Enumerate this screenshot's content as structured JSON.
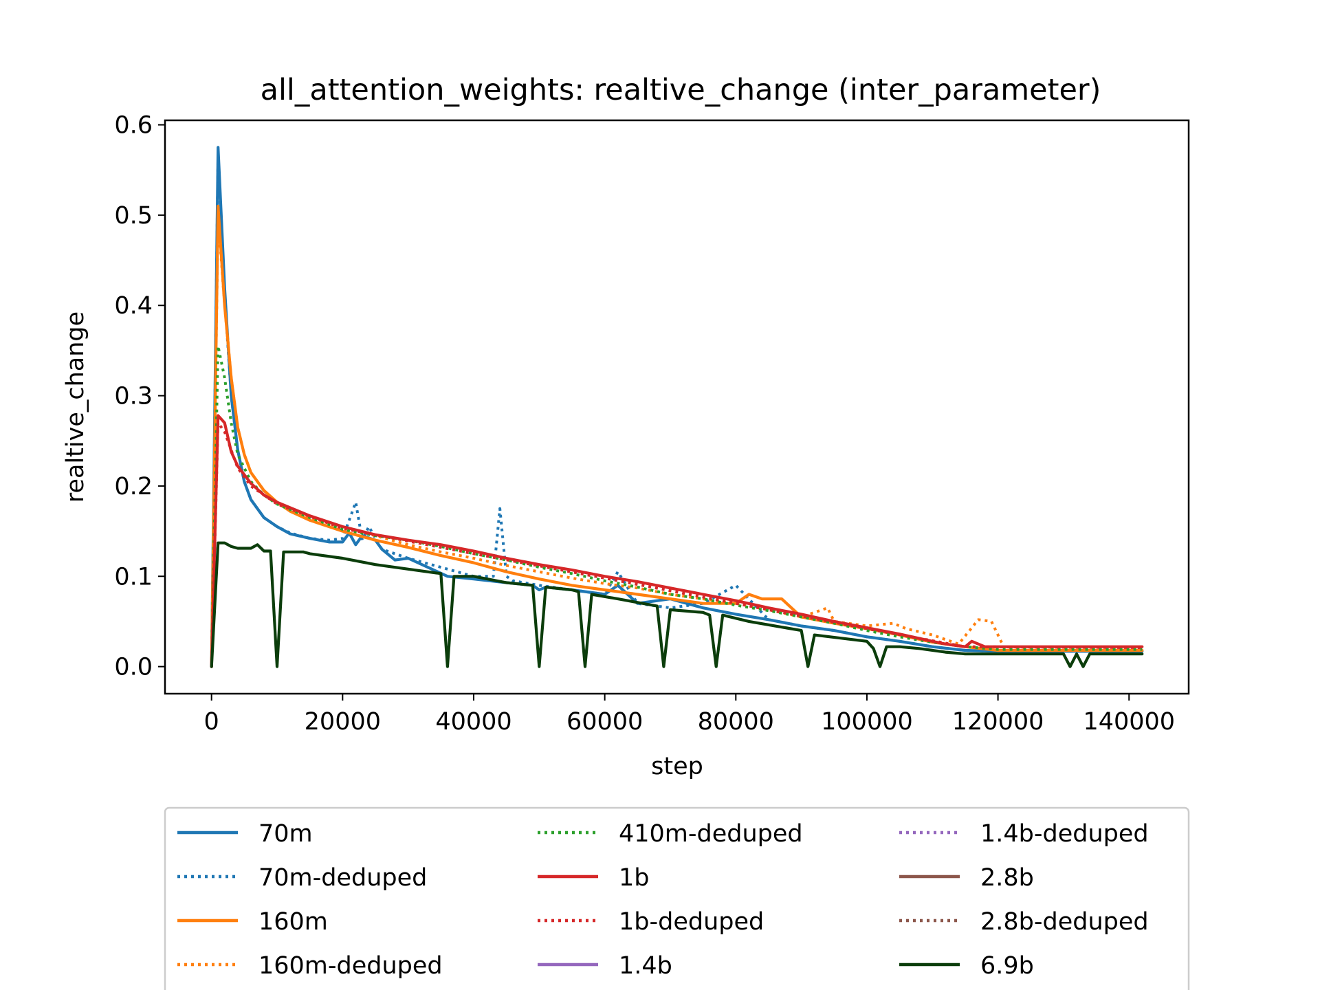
{
  "chart_data": {
    "type": "line",
    "title": "all_attention_weights: realtive_change (inter_parameter)",
    "xlabel": "step",
    "ylabel": "realtive_change",
    "xlim": [
      -7100,
      149100
    ],
    "ylim": [
      -0.03,
      0.605
    ],
    "xticks": [
      0,
      20000,
      40000,
      60000,
      80000,
      100000,
      120000,
      140000
    ],
    "xtick_labels": [
      "0",
      "20000",
      "40000",
      "60000",
      "80000",
      "100000",
      "120000",
      "140000"
    ],
    "yticks": [
      0.0,
      0.1,
      0.2,
      0.3,
      0.4,
      0.5,
      0.6
    ],
    "ytick_labels": [
      "0.0",
      "0.1",
      "0.2",
      "0.3",
      "0.4",
      "0.5",
      "0.6"
    ],
    "grid": false,
    "legend_position": "below",
    "series": [
      {
        "name": "70m",
        "color": "#1f77b4",
        "style": "solid",
        "x": [
          0,
          1000,
          2000,
          3000,
          4000,
          5000,
          6000,
          8000,
          10000,
          12000,
          15000,
          18000,
          20000,
          21000,
          22000,
          23000,
          25000,
          26000,
          28000,
          30000,
          33000,
          36000,
          40000,
          45000,
          49000,
          50000,
          51000,
          55000,
          60000,
          62000,
          65000,
          70000,
          75000,
          80000,
          85000,
          90000,
          95000,
          100000,
          105000,
          110000,
          115000,
          120000,
          130000,
          142000
        ],
        "y": [
          0.0,
          0.575,
          0.42,
          0.3,
          0.24,
          0.205,
          0.185,
          0.165,
          0.155,
          0.147,
          0.142,
          0.138,
          0.138,
          0.148,
          0.135,
          0.145,
          0.14,
          0.13,
          0.118,
          0.12,
          0.11,
          0.1,
          0.097,
          0.093,
          0.09,
          0.085,
          0.088,
          0.085,
          0.08,
          0.09,
          0.07,
          0.075,
          0.065,
          0.058,
          0.052,
          0.045,
          0.04,
          0.033,
          0.028,
          0.022,
          0.018,
          0.017,
          0.017,
          0.017
        ]
      },
      {
        "name": "70m-deduped",
        "color": "#1f77b4",
        "style": "dotted",
        "x": [
          0,
          1000,
          2000,
          3000,
          4000,
          5000,
          6000,
          8000,
          10000,
          12000,
          15000,
          18000,
          20000,
          22000,
          23000,
          24000,
          26000,
          30000,
          35000,
          40000,
          43000,
          44000,
          45000,
          46000,
          50000,
          55000,
          60000,
          62000,
          65000,
          70000,
          75000,
          80000,
          85000,
          90000,
          95000,
          100000,
          105000,
          110000,
          115000,
          120000,
          130000,
          142000
        ],
        "y": [
          0.0,
          0.57,
          0.41,
          0.3,
          0.24,
          0.205,
          0.185,
          0.165,
          0.155,
          0.148,
          0.142,
          0.14,
          0.142,
          0.182,
          0.14,
          0.155,
          0.13,
          0.12,
          0.11,
          0.1,
          0.1,
          0.175,
          0.1,
          0.095,
          0.09,
          0.085,
          0.08,
          0.105,
          0.07,
          0.065,
          0.07,
          0.09,
          0.052,
          0.045,
          0.04,
          0.033,
          0.028,
          0.022,
          0.018,
          0.017,
          0.017,
          0.017
        ]
      },
      {
        "name": "160m",
        "color": "#ff7f0e",
        "style": "solid",
        "x": [
          0,
          1000,
          2000,
          3000,
          4000,
          5000,
          6000,
          8000,
          10000,
          12000,
          15000,
          20000,
          25000,
          30000,
          35000,
          40000,
          45000,
          50000,
          55000,
          60000,
          65000,
          70000,
          75000,
          80000,
          82000,
          84000,
          87000,
          90000,
          95000,
          100000,
          105000,
          110000,
          115000,
          120000,
          130000,
          142000
        ],
        "y": [
          0.0,
          0.51,
          0.4,
          0.32,
          0.265,
          0.235,
          0.215,
          0.195,
          0.182,
          0.172,
          0.162,
          0.15,
          0.14,
          0.132,
          0.123,
          0.115,
          0.105,
          0.097,
          0.09,
          0.085,
          0.08,
          0.075,
          0.07,
          0.07,
          0.08,
          0.075,
          0.075,
          0.055,
          0.048,
          0.042,
          0.035,
          0.027,
          0.022,
          0.018,
          0.018,
          0.018
        ]
      },
      {
        "name": "160m-deduped",
        "color": "#ff7f0e",
        "style": "dotted",
        "x": [
          0,
          1000,
          2000,
          3000,
          4000,
          5000,
          6000,
          8000,
          10000,
          15000,
          20000,
          25000,
          30000,
          35000,
          40000,
          45000,
          50000,
          55000,
          60000,
          65000,
          70000,
          75000,
          80000,
          85000,
          90000,
          94000,
          95000,
          100000,
          104000,
          106000,
          110000,
          114000,
          117000,
          119000,
          121000,
          123000,
          130000,
          142000
        ],
        "y": [
          0.0,
          0.5,
          0.4,
          0.32,
          0.265,
          0.235,
          0.215,
          0.195,
          0.182,
          0.165,
          0.155,
          0.145,
          0.135,
          0.127,
          0.12,
          0.112,
          0.105,
          0.098,
          0.092,
          0.087,
          0.08,
          0.075,
          0.07,
          0.063,
          0.055,
          0.065,
          0.05,
          0.045,
          0.048,
          0.042,
          0.035,
          0.025,
          0.052,
          0.05,
          0.02,
          0.019,
          0.019,
          0.019
        ]
      },
      {
        "name": "410m-deduped",
        "color": "#2ca02c",
        "style": "dotted",
        "x": [
          0,
          1000,
          2000,
          3000,
          4000,
          6000,
          8000,
          10000,
          15000,
          20000,
          25000,
          30000,
          35000,
          40000,
          45000,
          50000,
          55000,
          60000,
          65000,
          70000,
          75000,
          80000,
          85000,
          90000,
          95000,
          100000,
          105000,
          110000,
          115000,
          120000,
          130000,
          142000
        ],
        "y": [
          0.0,
          0.355,
          0.32,
          0.27,
          0.235,
          0.205,
          0.19,
          0.18,
          0.165,
          0.152,
          0.145,
          0.14,
          0.133,
          0.125,
          0.118,
          0.11,
          0.103,
          0.095,
          0.088,
          0.08,
          0.075,
          0.068,
          0.062,
          0.055,
          0.048,
          0.04,
          0.033,
          0.027,
          0.022,
          0.019,
          0.019,
          0.019
        ]
      },
      {
        "name": "1b",
        "color": "#d62728",
        "style": "solid",
        "x": [
          0,
          1000,
          2000,
          3000,
          4000,
          6000,
          8000,
          10000,
          15000,
          20000,
          25000,
          30000,
          35000,
          40000,
          45000,
          50000,
          55000,
          60000,
          65000,
          70000,
          75000,
          80000,
          85000,
          90000,
          95000,
          100000,
          105000,
          110000,
          112000,
          115000,
          116000,
          118000,
          120000,
          130000,
          142000
        ],
        "y": [
          0.0,
          0.278,
          0.27,
          0.238,
          0.222,
          0.203,
          0.19,
          0.182,
          0.167,
          0.155,
          0.146,
          0.14,
          0.135,
          0.128,
          0.12,
          0.113,
          0.107,
          0.1,
          0.094,
          0.087,
          0.08,
          0.073,
          0.065,
          0.058,
          0.05,
          0.043,
          0.036,
          0.028,
          0.025,
          0.022,
          0.028,
          0.022,
          0.022,
          0.022,
          0.022
        ]
      },
      {
        "name": "1b-deduped",
        "color": "#d62728",
        "style": "dotted",
        "x": [
          0,
          1000,
          2000,
          4000,
          6000,
          10000,
          20000,
          40000,
          60000,
          80000,
          100000,
          115000,
          142000
        ],
        "y": [
          0.0,
          0.27,
          0.26,
          0.22,
          0.2,
          0.18,
          0.153,
          0.125,
          0.098,
          0.07,
          0.042,
          0.022,
          0.021
        ]
      },
      {
        "name": "1.4b",
        "color": "#9467bd",
        "style": "solid",
        "x": [],
        "y": []
      },
      {
        "name": "1.4b-deduped",
        "color": "#9467bd",
        "style": "dotted",
        "x": [],
        "y": []
      },
      {
        "name": "2.8b",
        "color": "#8c564b",
        "style": "solid",
        "x": [],
        "y": []
      },
      {
        "name": "2.8b-deduped",
        "color": "#8c564b",
        "style": "dotted",
        "x": [],
        "y": []
      },
      {
        "name": "6.9b",
        "color": "#0b3d0b",
        "style": "solid",
        "x": [
          0,
          1000,
          2000,
          3000,
          4000,
          5000,
          6000,
          7000,
          8000,
          9000,
          10000,
          11000,
          12000,
          13000,
          14000,
          15000,
          20000,
          25000,
          30000,
          35000,
          36000,
          37000,
          40000,
          45000,
          49000,
          50000,
          51000,
          55000,
          56000,
          57000,
          58000,
          62000,
          68000,
          69000,
          70000,
          75000,
          76000,
          77000,
          78000,
          82000,
          90000,
          91000,
          92000,
          100000,
          101000,
          102000,
          103000,
          105000,
          108000,
          112000,
          115000,
          120000,
          130000,
          131000,
          132000,
          133000,
          134000,
          142000
        ],
        "y": [
          0.0,
          0.137,
          0.137,
          0.133,
          0.131,
          0.131,
          0.131,
          0.135,
          0.128,
          0.128,
          0.0,
          0.127,
          0.127,
          0.127,
          0.127,
          0.125,
          0.12,
          0.113,
          0.108,
          0.103,
          0.0,
          0.1,
          0.1,
          0.093,
          0.09,
          0.0,
          0.088,
          0.085,
          0.083,
          0.0,
          0.08,
          0.075,
          0.067,
          0.0,
          0.063,
          0.06,
          0.057,
          0.0,
          0.057,
          0.05,
          0.04,
          0.0,
          0.035,
          0.028,
          0.02,
          0.0,
          0.022,
          0.022,
          0.02,
          0.016,
          0.014,
          0.014,
          0.014,
          0.0,
          0.014,
          0.0,
          0.014,
          0.014
        ]
      }
    ]
  }
}
